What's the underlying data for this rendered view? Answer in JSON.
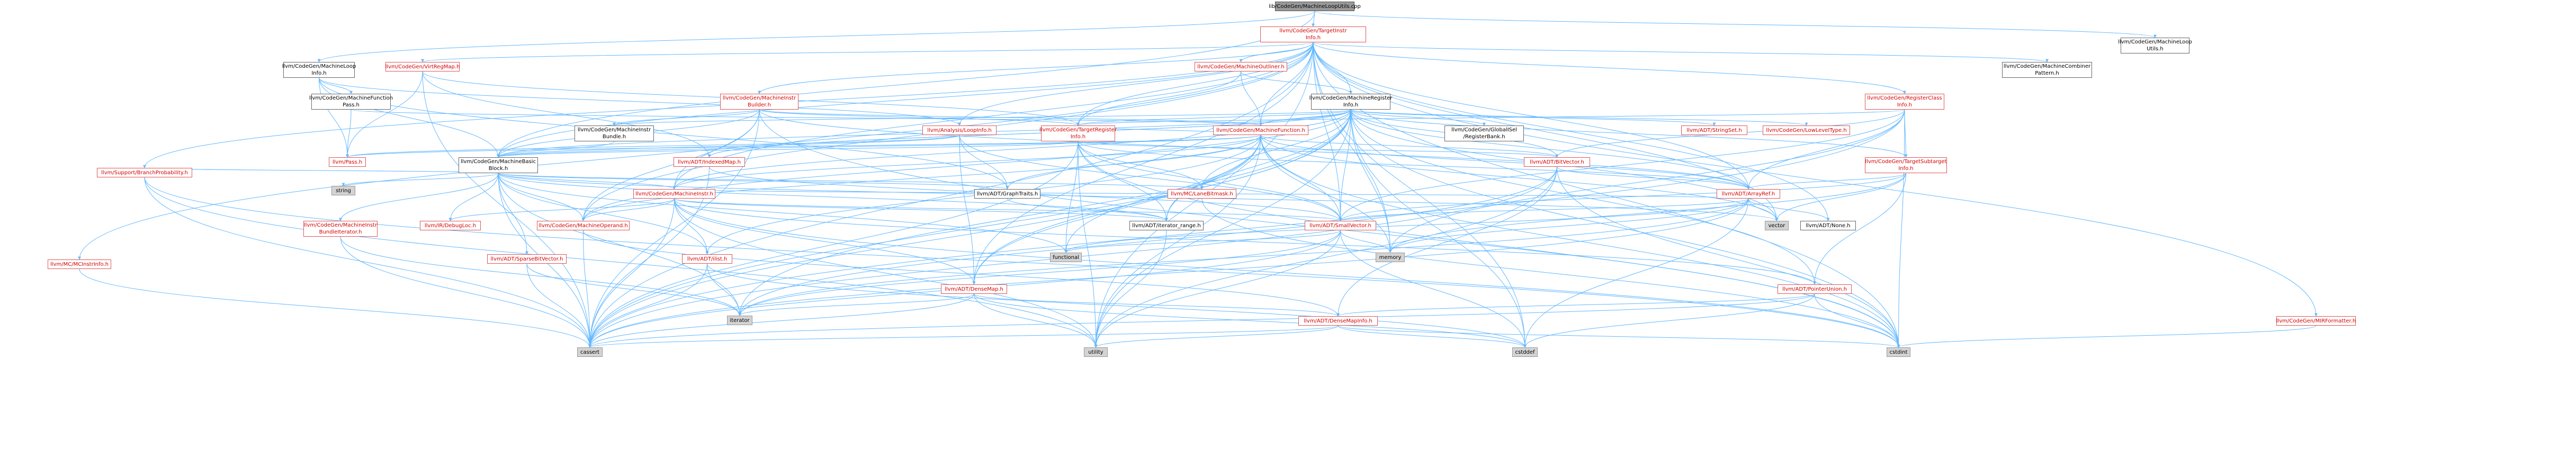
{
  "nodes": [
    {
      "id": "root",
      "label": "lib/CodeGen/MachineLoopUtils.cpp",
      "style": "root"
    },
    {
      "id": "tii",
      "label": "llvm/CodeGen/TargetInstr\nInfo.h",
      "style": "red"
    },
    {
      "id": "mlu",
      "label": "llvm/CodeGen/MachineLoop\nUtils.h",
      "style": "plain"
    },
    {
      "id": "mli",
      "label": "llvm/CodeGen/MachineLoop\nInfo.h",
      "style": "plain"
    },
    {
      "id": "vrm",
      "label": "llvm/CodeGen/VirtRegMap.h",
      "style": "red"
    },
    {
      "id": "mout",
      "label": "llvm/CodeGen/MachineOutliner.h",
      "style": "red"
    },
    {
      "id": "mcp",
      "label": "llvm/CodeGen/MachineCombiner\nPattern.h",
      "style": "plain"
    },
    {
      "id": "mcinst",
      "label": "llvm/MC/MCInstrInfo.h",
      "style": "red"
    },
    {
      "id": "sbp",
      "label": "llvm/Support/BranchProbability.h",
      "style": "red"
    },
    {
      "id": "mfp",
      "label": "llvm/CodeGen/MachineFunction\nPass.h",
      "style": "plain"
    },
    {
      "id": "mib",
      "label": "llvm/CodeGen/MachineInstr\nBuilder.h",
      "style": "red"
    },
    {
      "id": "mri",
      "label": "llvm/CodeGen/MachineRegister\nInfo.h",
      "style": "plain"
    },
    {
      "id": "rci",
      "label": "llvm/CodeGen/RegisterClass\nInfo.h",
      "style": "red"
    },
    {
      "id": "mibundle",
      "label": "llvm/CodeGen/MachineInstr\nBundle.h",
      "style": "plain"
    },
    {
      "id": "ali",
      "label": "llvm/Analysis/LoopInfo.h",
      "style": "red"
    },
    {
      "id": "tri",
      "label": "llvm/CodeGen/TargetRegister\nInfo.h",
      "style": "red"
    },
    {
      "id": "mf",
      "label": "llvm/CodeGen/MachineFunction.h",
      "style": "red"
    },
    {
      "id": "gisel",
      "label": "llvm/CodeGen/GlobalISel\n/RegisterBank.h",
      "style": "plain"
    },
    {
      "id": "strset",
      "label": "llvm/ADT/StringSet.h",
      "style": "red"
    },
    {
      "id": "llt",
      "label": "llvm/CodeGen/LowLevelType.h",
      "style": "red"
    },
    {
      "id": "pass",
      "label": "llvm/Pass.h",
      "style": "red"
    },
    {
      "id": "mbb",
      "label": "llvm/CodeGen/MachineBasic\nBlock.h",
      "style": "plain"
    },
    {
      "id": "imap",
      "label": "llvm/ADT/IndexedMap.h",
      "style": "red"
    },
    {
      "id": "bitvec",
      "label": "llvm/ADT/BitVector.h",
      "style": "red"
    },
    {
      "id": "tsi",
      "label": "llvm/CodeGen/TargetSubtarget\nInfo.h",
      "style": "red"
    },
    {
      "id": "string",
      "label": "string",
      "style": "gray"
    },
    {
      "id": "mi",
      "label": "llvm/CodeGen/MachineInstr.h",
      "style": "red"
    },
    {
      "id": "graph",
      "label": "llvm/ADT/GraphTraits.h",
      "style": "plain"
    },
    {
      "id": "lanebm",
      "label": "llvm/MC/LaneBitmask.h",
      "style": "red"
    },
    {
      "id": "arrayref",
      "label": "llvm/ADT/ArrayRef.h",
      "style": "red"
    },
    {
      "id": "mibi",
      "label": "llvm/CodeGen/MachineInstr\nBundleIterator.h",
      "style": "red"
    },
    {
      "id": "debugloc",
      "label": "llvm/IR/DebugLoc.h",
      "style": "red"
    },
    {
      "id": "mop",
      "label": "llvm/CodeGen/MachineOperand.h",
      "style": "red"
    },
    {
      "id": "irange",
      "label": "llvm/ADT/iterator_range.h",
      "style": "plain"
    },
    {
      "id": "smallvec",
      "label": "llvm/ADT/SmallVector.h",
      "style": "red"
    },
    {
      "id": "vector",
      "label": "vector",
      "style": "gray"
    },
    {
      "id": "none",
      "label": "llvm/ADT/None.h",
      "style": "plain"
    },
    {
      "id": "sbv",
      "label": "llvm/ADT/SparseBitVector.h",
      "style": "red"
    },
    {
      "id": "ilist",
      "label": "llvm/ADT/ilist.h",
      "style": "red"
    },
    {
      "id": "functional",
      "label": "functional",
      "style": "gray"
    },
    {
      "id": "densemap",
      "label": "llvm/ADT/DenseMap.h",
      "style": "red"
    },
    {
      "id": "memory",
      "label": "memory",
      "style": "gray"
    },
    {
      "id": "ptrunion",
      "label": "llvm/ADT/PointerUnion.h",
      "style": "red"
    },
    {
      "id": "iterator",
      "label": "iterator",
      "style": "gray"
    },
    {
      "id": "dmi",
      "label": "llvm/ADT/DenseMapInfo.h",
      "style": "red"
    },
    {
      "id": "mirfmt",
      "label": "llvm/CodeGen/MIRFormatter.h",
      "style": "red"
    },
    {
      "id": "cassert",
      "label": "cassert",
      "style": "gray"
    },
    {
      "id": "utility",
      "label": "utility",
      "style": "gray"
    },
    {
      "id": "cstddef",
      "label": "cstddef",
      "style": "gray"
    },
    {
      "id": "cstdint",
      "label": "cstdint",
      "style": "gray"
    }
  ],
  "edges": [
    [
      "root",
      "tii"
    ],
    [
      "root",
      "mlu"
    ],
    [
      "root",
      "mli"
    ],
    [
      "root",
      "mbb"
    ],
    [
      "tii",
      "mcp"
    ],
    [
      "tii",
      "mout"
    ],
    [
      "tii",
      "vrm"
    ],
    [
      "tii",
      "mib"
    ],
    [
      "tii",
      "mri"
    ],
    [
      "tii",
      "rci"
    ],
    [
      "tii",
      "tri"
    ],
    [
      "tii",
      "mf"
    ],
    [
      "tii",
      "mbb"
    ],
    [
      "tii",
      "mcinst"
    ],
    [
      "tii",
      "sbp"
    ],
    [
      "tii",
      "mirfmt"
    ],
    [
      "tii",
      "arrayref"
    ],
    [
      "tii",
      "densemap"
    ],
    [
      "tii",
      "none"
    ],
    [
      "tii",
      "cassert"
    ],
    [
      "tii",
      "cstddef"
    ],
    [
      "tii",
      "cstdint"
    ],
    [
      "tii",
      "utility"
    ],
    [
      "tii",
      "vector"
    ],
    [
      "tii",
      "memory"
    ],
    [
      "tii",
      "mi"
    ],
    [
      "tii",
      "mop"
    ],
    [
      "tii",
      "smallvec"
    ],
    [
      "tii",
      "ali"
    ],
    [
      "mli",
      "mfp"
    ],
    [
      "mli",
      "ali"
    ],
    [
      "mli",
      "mbb"
    ],
    [
      "mli",
      "pass"
    ],
    [
      "mli",
      "graph"
    ],
    [
      "mfp",
      "mf"
    ],
    [
      "mfp",
      "pass"
    ],
    [
      "vrm",
      "tri"
    ],
    [
      "vrm",
      "imap"
    ],
    [
      "vrm",
      "pass"
    ],
    [
      "vrm",
      "cassert"
    ],
    [
      "mout",
      "mf"
    ],
    [
      "mout",
      "mri"
    ],
    [
      "mout",
      "tri"
    ],
    [
      "mib",
      "mf"
    ],
    [
      "mib",
      "mi"
    ],
    [
      "mib",
      "mop"
    ],
    [
      "mib",
      "mibundle"
    ],
    [
      "mib",
      "tri"
    ],
    [
      "mib",
      "arrayref"
    ],
    [
      "mib",
      "cassert"
    ],
    [
      "mib",
      "cstdint"
    ],
    [
      "mib",
      "mbb"
    ],
    [
      "mri",
      "mf"
    ],
    [
      "mri",
      "mbb"
    ],
    [
      "mri",
      "mi"
    ],
    [
      "mri",
      "mop"
    ],
    [
      "mri",
      "tri"
    ],
    [
      "mri",
      "tsi"
    ],
    [
      "mri",
      "gisel"
    ],
    [
      "mri",
      "strset"
    ],
    [
      "mri",
      "llt"
    ],
    [
      "mri",
      "imap"
    ],
    [
      "mri",
      "bitvec"
    ],
    [
      "mri",
      "arrayref"
    ],
    [
      "mri",
      "lanebm"
    ],
    [
      "mri",
      "irange"
    ],
    [
      "mri",
      "smallvec"
    ],
    [
      "mri",
      "cassert"
    ],
    [
      "mri",
      "cstddef"
    ],
    [
      "mri",
      "cstdint"
    ],
    [
      "mri",
      "utility"
    ],
    [
      "mri",
      "vector"
    ],
    [
      "mri",
      "memory"
    ],
    [
      "mri",
      "iterator"
    ],
    [
      "mri",
      "densemap"
    ],
    [
      "mri",
      "ptrunion"
    ],
    [
      "mri",
      "mibundle"
    ],
    [
      "mri",
      "imap"
    ],
    [
      "rci",
      "tri"
    ],
    [
      "rci",
      "tsi"
    ],
    [
      "rci",
      "bitvec"
    ],
    [
      "rci",
      "arrayref"
    ],
    [
      "rci",
      "smallvec"
    ],
    [
      "rci",
      "cstdint"
    ],
    [
      "rci",
      "memory"
    ],
    [
      "rci",
      "cassert"
    ],
    [
      "mibundle",
      "mbb"
    ],
    [
      "ali",
      "pass"
    ],
    [
      "ali",
      "densemap"
    ],
    [
      "ali",
      "graph"
    ],
    [
      "ali",
      "smallvec"
    ],
    [
      "ali",
      "mbb"
    ],
    [
      "tri",
      "mf"
    ],
    [
      "tri",
      "bitvec"
    ],
    [
      "tri",
      "arrayref"
    ],
    [
      "tri",
      "lanebm"
    ],
    [
      "tri",
      "smallvec"
    ],
    [
      "tri",
      "cassert"
    ],
    [
      "tri",
      "cstdint"
    ],
    [
      "tri",
      "functional"
    ],
    [
      "tri",
      "utility"
    ],
    [
      "tri",
      "mbb"
    ],
    [
      "tri",
      "irange"
    ],
    [
      "mf",
      "mbb"
    ],
    [
      "mf",
      "arrayref"
    ],
    [
      "mf",
      "bitvec"
    ],
    [
      "mf",
      "densemap"
    ],
    [
      "mf",
      "graph"
    ],
    [
      "mf",
      "smallvec"
    ],
    [
      "mf",
      "ilist"
    ],
    [
      "mf",
      "mi"
    ],
    [
      "mf",
      "mop"
    ],
    [
      "mf",
      "irange"
    ],
    [
      "mf",
      "cassert"
    ],
    [
      "mf",
      "cstdint"
    ],
    [
      "mf",
      "memory"
    ],
    [
      "mf",
      "utility"
    ],
    [
      "mf",
      "vector"
    ],
    [
      "mf",
      "functional"
    ],
    [
      "mf",
      "pass"
    ],
    [
      "tsi",
      "arrayref"
    ],
    [
      "tsi",
      "smallvec"
    ],
    [
      "tsi",
      "vector"
    ],
    [
      "tsi",
      "memory"
    ],
    [
      "tsi",
      "ptrunion"
    ],
    [
      "mbb",
      "mi"
    ],
    [
      "mbb",
      "mibi"
    ],
    [
      "mbb",
      "debugloc"
    ],
    [
      "mbb",
      "graph"
    ],
    [
      "mbb",
      "lanebm"
    ],
    [
      "mbb",
      "sbv"
    ],
    [
      "mbb",
      "ilist"
    ],
    [
      "mbb",
      "irange"
    ],
    [
      "mbb",
      "cassert"
    ],
    [
      "mbb",
      "functional"
    ],
    [
      "mbb",
      "iterator"
    ],
    [
      "mbb",
      "string"
    ],
    [
      "mbb",
      "vector"
    ],
    [
      "mbb",
      "sbp"
    ],
    [
      "mbb",
      "mop"
    ],
    [
      "imap",
      "cassert"
    ],
    [
      "imap",
      "smallvec"
    ],
    [
      "bitvec",
      "arrayref"
    ],
    [
      "bitvec",
      "dmi"
    ],
    [
      "bitvec",
      "cassert"
    ],
    [
      "bitvec",
      "utility"
    ],
    [
      "bitvec",
      "cstdint"
    ],
    [
      "bitvec",
      "iterator"
    ],
    [
      "mi",
      "mop"
    ],
    [
      "mi",
      "debugloc"
    ],
    [
      "mi",
      "ilist"
    ],
    [
      "mi",
      "densemap"
    ],
    [
      "mi",
      "arrayref"
    ],
    [
      "mi",
      "irange"
    ],
    [
      "mi",
      "cassert"
    ],
    [
      "mi",
      "cstdint"
    ],
    [
      "mi",
      "utility"
    ],
    [
      "mi",
      "ptrunion"
    ],
    [
      "mi",
      "smallvec"
    ],
    [
      "graph",
      "irange"
    ],
    [
      "lanebm",
      "cstdint"
    ],
    [
      "arrayref",
      "smallvec"
    ],
    [
      "arrayref",
      "none"
    ],
    [
      "arrayref",
      "cassert"
    ],
    [
      "arrayref",
      "cstddef"
    ],
    [
      "arrayref",
      "vector"
    ],
    [
      "arrayref",
      "memory"
    ],
    [
      "arrayref",
      "iterator"
    ],
    [
      "arrayref",
      "functional"
    ],
    [
      "mibi",
      "cassert"
    ],
    [
      "mibi",
      "iterator"
    ],
    [
      "mop",
      "cassert"
    ],
    [
      "mop",
      "dmi"
    ],
    [
      "irange",
      "utility"
    ],
    [
      "smallvec",
      "cassert"
    ],
    [
      "smallvec",
      "cstddef"
    ],
    [
      "smallvec",
      "utility"
    ],
    [
      "smallvec",
      "iterator"
    ],
    [
      "smallvec",
      "memory"
    ],
    [
      "smallvec",
      "functional"
    ],
    [
      "sbv",
      "cassert"
    ],
    [
      "sbv",
      "iterator"
    ],
    [
      "ilist",
      "cassert"
    ],
    [
      "ilist",
      "iterator"
    ],
    [
      "ilist",
      "cstddef"
    ],
    [
      "densemap",
      "dmi"
    ],
    [
      "densemap",
      "cassert"
    ],
    [
      "densemap",
      "utility"
    ],
    [
      "densemap",
      "iterator"
    ],
    [
      "densemap",
      "cstddef"
    ],
    [
      "ptrunion",
      "dmi"
    ],
    [
      "ptrunion",
      "cassert"
    ],
    [
      "ptrunion",
      "cstddef"
    ],
    [
      "ptrunion",
      "cstdint"
    ],
    [
      "dmi",
      "cassert"
    ],
    [
      "dmi",
      "cstddef"
    ],
    [
      "dmi",
      "cstdint"
    ],
    [
      "dmi",
      "utility"
    ],
    [
      "mirfmt",
      "cstdint"
    ],
    [
      "mcinst",
      "cassert"
    ],
    [
      "sbp",
      "cassert"
    ],
    [
      "sbp",
      "cstdint"
    ],
    [
      "sbp",
      "utility"
    ],
    [
      "mlu",
      "mlu"
    ]
  ],
  "colors": {
    "edge": "#63b8ff",
    "red_text": "#d40000",
    "red_border": "#e05555",
    "gray_fill": "#d3d3d3"
  }
}
